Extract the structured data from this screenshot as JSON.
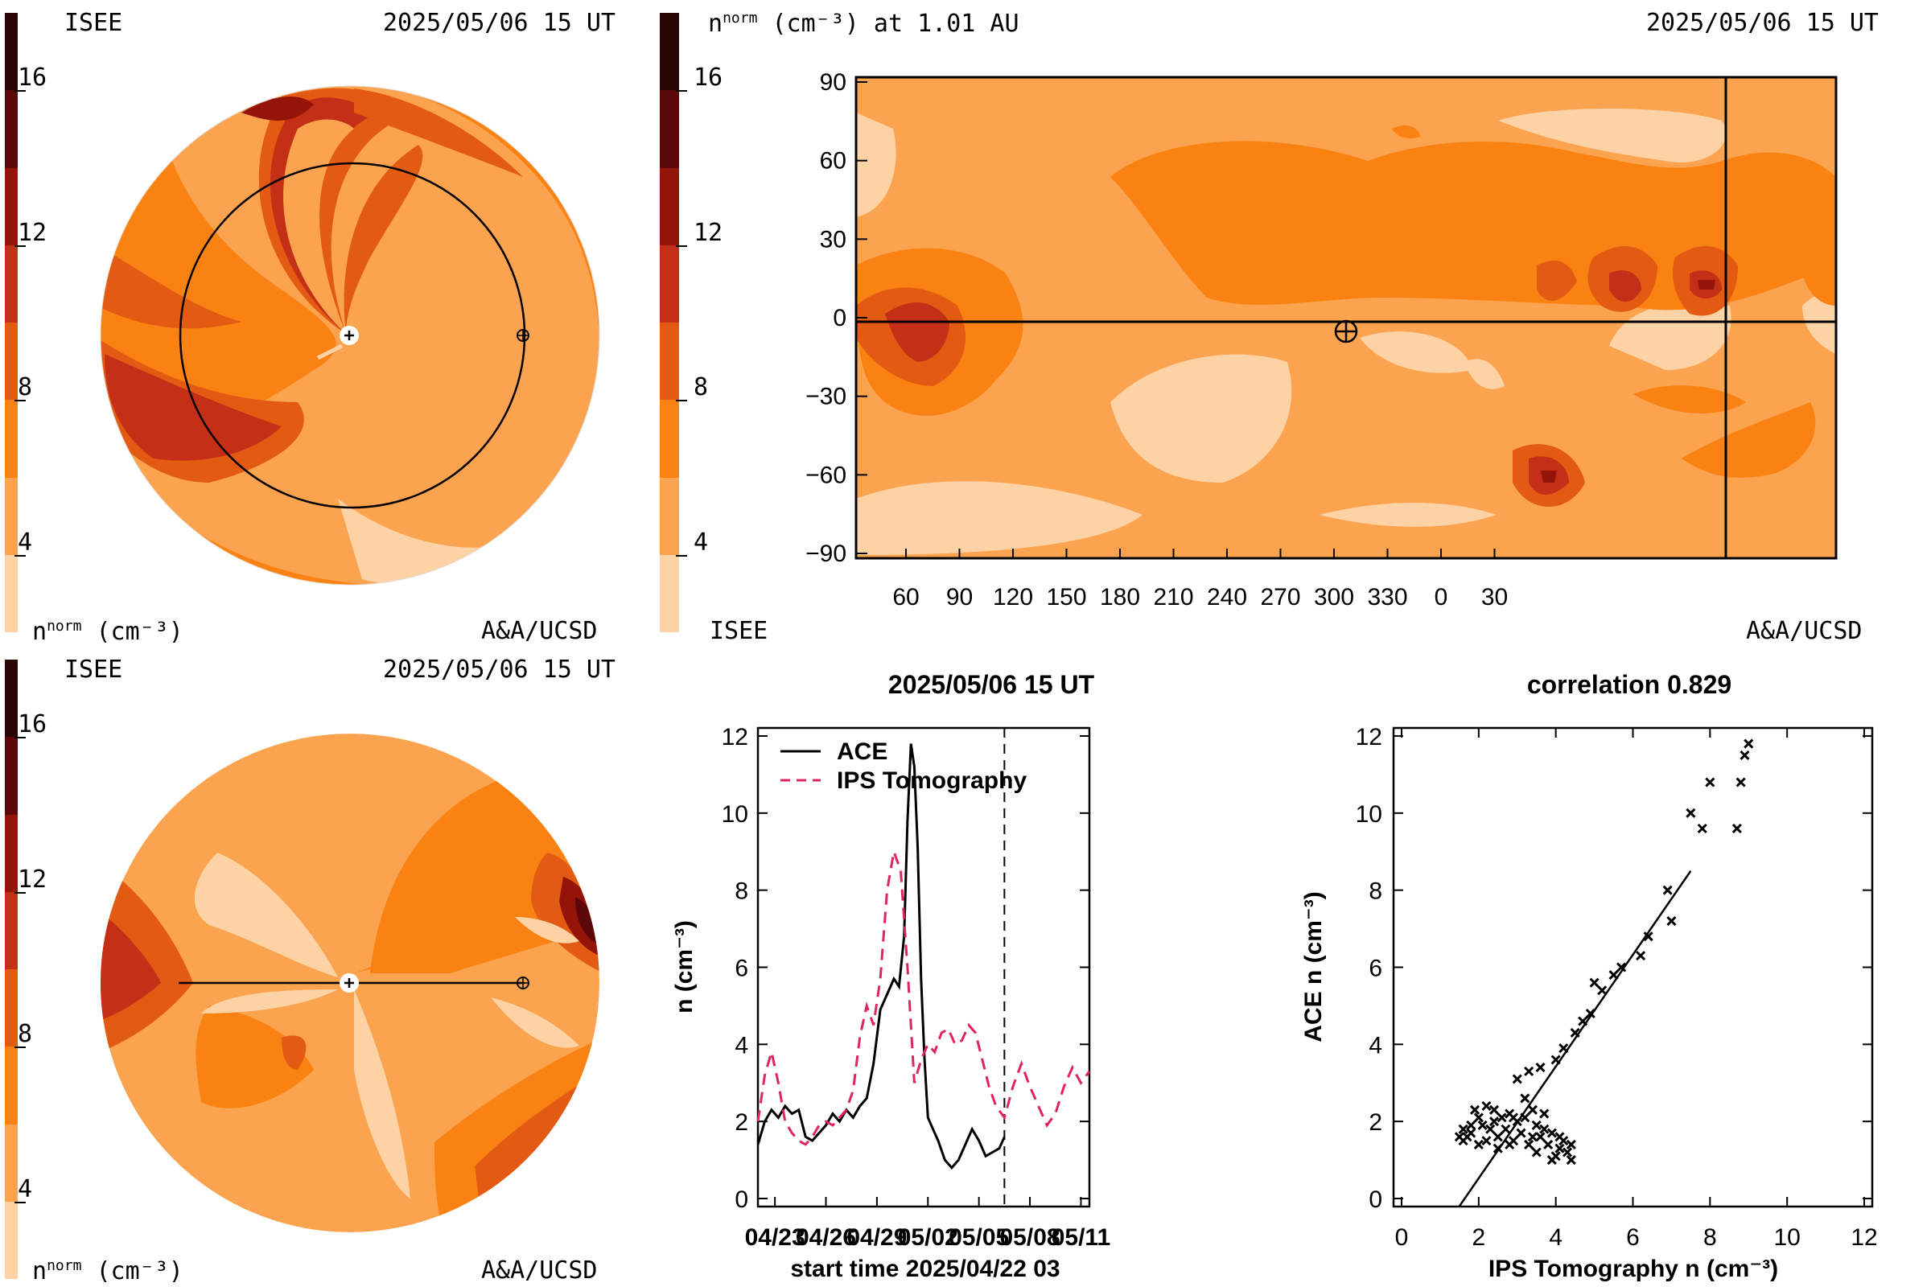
{
  "palette": [
    "#fdd3a6",
    "#fca34f",
    "#f98213",
    "#e35a12",
    "#c43017",
    "#951409",
    "#5c0808",
    "#2a0505"
  ],
  "colorbar": {
    "ticks": [
      "16",
      "12",
      "8",
      "4"
    ]
  },
  "panel_ecliptic": {
    "left_label": "ISEE",
    "timestamp": "2025/05/06 15 UT",
    "unit_label_n": "n",
    "unit_label_sup": "norm",
    "unit_label_rest": "(cm⁻³)",
    "credit": "A&A/UCSD"
  },
  "panel_meridional": {
    "left_label": "ISEE",
    "timestamp": "2025/05/06 15 UT",
    "unit_label_n": "n",
    "unit_label_sup": "norm",
    "unit_label_rest": "(cm⁻³)",
    "credit": "A&A/UCSD"
  },
  "panel_map": {
    "title_n": "n",
    "title_sup": "norm",
    "title_rest": "(cm⁻³) at 1.01 AU",
    "timestamp": "2025/05/06 15 UT",
    "left_label": "ISEE",
    "credit": "A&A/UCSD",
    "x_ticks": [
      "60",
      "90",
      "120",
      "150",
      "180",
      "210",
      "240",
      "270",
      "300",
      "330",
      "0",
      "30"
    ],
    "y_ticks": [
      "90",
      "60",
      "30",
      "0",
      "−30",
      "−60",
      "−90"
    ]
  },
  "chart_data": [
    {
      "type": "line",
      "title": "2025/05/06 15 UT",
      "xlabel": "start time 2025/04/22 03",
      "ylabel": "n (cm⁻³)",
      "x_tick_labels": [
        "04/23",
        "04/26",
        "04/29",
        "05/02",
        "05/05",
        "05/08",
        "05/11"
      ],
      "y_ticks": [
        "0",
        "2",
        "4",
        "6",
        "8",
        "10",
        "12"
      ],
      "xlim_days": [
        0,
        19.5
      ],
      "ylim": [
        0,
        12
      ],
      "marker_day": 14.5,
      "series": [
        {
          "name": "ACE",
          "color": "#000000",
          "style": "solid",
          "x": [
            0.0,
            0.4,
            0.8,
            1.2,
            1.6,
            2.0,
            2.4,
            2.8,
            3.2,
            3.6,
            4.0,
            4.4,
            4.8,
            5.2,
            5.6,
            6.0,
            6.4,
            6.8,
            7.2,
            7.6,
            8.0,
            8.3,
            8.6,
            8.8,
            9.0,
            9.2,
            9.4,
            9.6,
            9.8,
            10.0,
            10.3,
            10.6,
            11.0,
            11.4,
            11.8,
            12.2,
            12.6,
            13.0,
            13.4,
            13.8,
            14.2,
            14.5
          ],
          "y": [
            1.4,
            2.0,
            2.3,
            2.1,
            2.4,
            2.2,
            2.3,
            1.6,
            1.5,
            1.7,
            1.9,
            2.2,
            2.0,
            2.3,
            2.1,
            2.4,
            2.6,
            3.5,
            4.9,
            5.3,
            5.7,
            5.5,
            6.8,
            9.8,
            11.8,
            11.2,
            9.1,
            5.7,
            3.6,
            2.1,
            1.8,
            1.5,
            1.0,
            0.8,
            1.0,
            1.4,
            1.8,
            1.5,
            1.1,
            1.2,
            1.3,
            1.6
          ]
        },
        {
          "name": "IPS Tomography",
          "color": "#e0245e",
          "style": "dashed",
          "x": [
            0.0,
            0.4,
            0.8,
            1.2,
            1.6,
            2.0,
            2.4,
            2.8,
            3.2,
            3.6,
            4.0,
            4.4,
            4.8,
            5.2,
            5.6,
            6.0,
            6.4,
            6.8,
            7.2,
            7.6,
            8.0,
            8.4,
            8.8,
            9.2,
            9.6,
            10.0,
            10.4,
            10.8,
            11.2,
            11.6,
            12.0,
            12.4,
            12.8,
            13.2,
            13.6,
            14.0,
            14.5,
            15.0,
            15.5,
            16.0,
            16.5,
            17.0,
            17.5,
            18.0,
            18.5,
            19.0,
            19.5
          ],
          "y": [
            2.0,
            3.2,
            3.8,
            3.0,
            2.0,
            1.7,
            1.5,
            1.4,
            1.6,
            1.9,
            2.0,
            1.9,
            2.1,
            2.3,
            2.8,
            4.2,
            5.0,
            4.5,
            5.7,
            8.0,
            9.0,
            8.5,
            6.0,
            3.0,
            3.6,
            4.0,
            3.8,
            4.3,
            4.4,
            4.0,
            4.1,
            4.5,
            4.3,
            3.6,
            2.9,
            2.4,
            2.1,
            2.9,
            3.5,
            2.9,
            2.4,
            1.9,
            2.2,
            2.9,
            3.4,
            3.0,
            3.3
          ]
        }
      ]
    },
    {
      "type": "scatter",
      "title": "correlation 0.829",
      "xlabel": "IPS Tomography n (cm⁻³)",
      "ylabel": "ACE n (cm⁻³)",
      "x_ticks": [
        "0",
        "2",
        "4",
        "6",
        "8",
        "10",
        "12"
      ],
      "y_ticks": [
        "0",
        "2",
        "4",
        "6",
        "8",
        "10",
        "12"
      ],
      "xlim": [
        0,
        12
      ],
      "ylim": [
        0,
        12
      ],
      "fit_line": {
        "x": [
          1.5,
          7.5
        ],
        "y": [
          -0.2,
          8.5
        ]
      },
      "points": [
        [
          1.5,
          1.6
        ],
        [
          1.6,
          1.8
        ],
        [
          1.7,
          1.6
        ],
        [
          1.8,
          1.7
        ],
        [
          1.9,
          2.3
        ],
        [
          2.0,
          2.1
        ],
        [
          2.1,
          1.9
        ],
        [
          2.2,
          2.4
        ],
        [
          2.3,
          1.8
        ],
        [
          2.4,
          2.0
        ],
        [
          2.5,
          1.6
        ],
        [
          2.6,
          2.1
        ],
        [
          2.7,
          1.8
        ],
        [
          2.8,
          2.2
        ],
        [
          2.9,
          1.5
        ],
        [
          3.0,
          2.0
        ],
        [
          3.1,
          1.7
        ],
        [
          3.2,
          2.1
        ],
        [
          3.3,
          1.4
        ],
        [
          3.4,
          2.3
        ],
        [
          3.5,
          1.9
        ],
        [
          3.6,
          1.6
        ],
        [
          3.7,
          2.2
        ],
        [
          3.8,
          1.4
        ],
        [
          3.9,
          1.7
        ],
        [
          4.0,
          1.1
        ],
        [
          4.1,
          1.3
        ],
        [
          4.2,
          1.5
        ],
        [
          4.3,
          1.2
        ],
        [
          4.4,
          1.4
        ],
        [
          2.2,
          1.5
        ],
        [
          2.5,
          1.3
        ],
        [
          2.8,
          1.4
        ],
        [
          3.5,
          1.2
        ],
        [
          3.9,
          1.0
        ],
        [
          4.1,
          1.6
        ],
        [
          3.2,
          2.6
        ],
        [
          3.3,
          3.3
        ],
        [
          3.6,
          3.4
        ],
        [
          4.0,
          3.6
        ],
        [
          4.2,
          3.9
        ],
        [
          4.5,
          4.3
        ],
        [
          4.7,
          4.6
        ],
        [
          4.9,
          4.8
        ],
        [
          5.2,
          5.4
        ],
        [
          5.0,
          5.6
        ],
        [
          5.5,
          5.8
        ],
        [
          5.7,
          6.0
        ],
        [
          6.4,
          6.8
        ],
        [
          6.2,
          6.3
        ],
        [
          6.9,
          8.0
        ],
        [
          7.0,
          7.2
        ],
        [
          7.5,
          10.0
        ],
        [
          7.8,
          9.6
        ],
        [
          8.0,
          10.8
        ],
        [
          8.7,
          9.6
        ],
        [
          8.8,
          10.8
        ],
        [
          8.9,
          11.5
        ],
        [
          9.0,
          11.8
        ],
        [
          1.6,
          1.5
        ],
        [
          1.8,
          1.9
        ],
        [
          2.0,
          1.4
        ],
        [
          2.4,
          2.3
        ],
        [
          2.9,
          2.1
        ],
        [
          3.4,
          1.6
        ],
        [
          4.4,
          1.0
        ],
        [
          3.0,
          3.1
        ],
        [
          3.7,
          1.8
        ]
      ]
    }
  ]
}
